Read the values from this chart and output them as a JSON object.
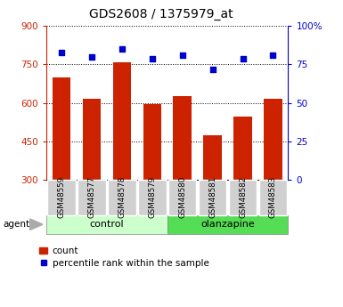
{
  "title": "GDS2608 / 1375979_at",
  "categories": [
    "GSM48559",
    "GSM48577",
    "GSM48578",
    "GSM48579",
    "GSM48580",
    "GSM48581",
    "GSM48582",
    "GSM48583"
  ],
  "bar_values": [
    700,
    615,
    760,
    595,
    625,
    475,
    545,
    615
  ],
  "dot_values": [
    83,
    80,
    85,
    79,
    81,
    72,
    79,
    81
  ],
  "bar_color": "#cc2200",
  "dot_color": "#0000cc",
  "ylim_left": [
    300,
    900
  ],
  "ylim_right": [
    0,
    100
  ],
  "yticks_left": [
    300,
    450,
    600,
    750,
    900
  ],
  "yticks_right": [
    0,
    25,
    50,
    75,
    100
  ],
  "ytick_labels_right": [
    "0",
    "25",
    "50",
    "75",
    "100%"
  ],
  "control_label": "control",
  "olanzapine_label": "olanzapine",
  "control_color": "#ccffcc",
  "olanzapine_color": "#55dd55",
  "agent_label": "agent",
  "legend_count": "count",
  "legend_percentile": "percentile rank within the sample",
  "n_control": 4,
  "n_olanzapine": 4,
  "tick_bg_color": "#d0d0d0",
  "plot_bg": "#ffffff"
}
